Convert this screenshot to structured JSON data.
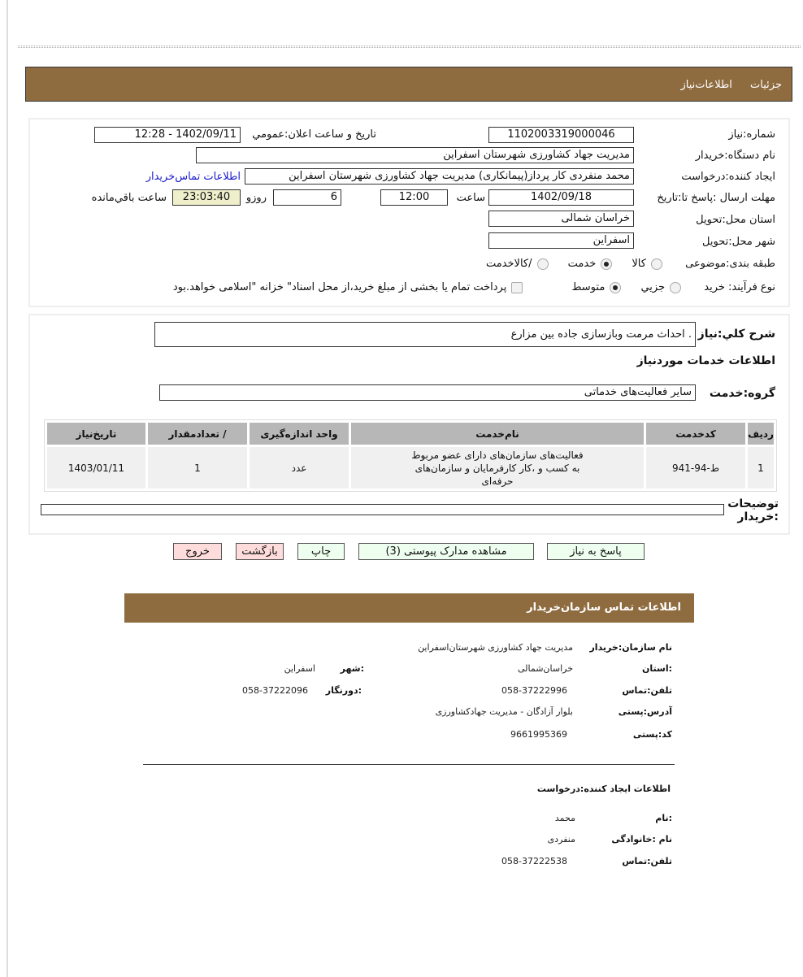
{
  "header": {
    "tabs": [
      "جزئیات",
      "اطلاعات‌نیاز"
    ],
    "color": "#8f6c40"
  },
  "form": {
    "need_number_label": "شماره:نیاز",
    "need_number": "1102003319000046",
    "announce_label": "تاریخ و ساعت اعلان:عمومي",
    "announce_value": "1402/09/11 - 12:28",
    "buyer_org_label": "نام دستگاه:خریدار",
    "buyer_org": "مدیریت جهاد کشاورزی شهرستان اسفراین",
    "creator_label": "ایجاد کنندە:درخواست",
    "creator": "محمد  منفردی کار پرداز(پیمانکاری) مدیریت جهاد کشاورزی شهرستان اسفراین",
    "contact_link": "اطلاعات تماس‌خریدار",
    "deadline_label": "مهلت ارسال :پاسخ تا:تاریخ",
    "deadline_date": "1402/09/18",
    "time_label": "ساعت",
    "deadline_time": "12:00",
    "days": "6",
    "days_label": "روزو",
    "remaining": "23:03:40",
    "remaining_label": "ساعت باقي‌مانده",
    "province_label": "استان محل:تحویل",
    "province": "خراسان شمالی",
    "city_label": "شهر محل:تحویل",
    "city": "اسفراین",
    "category_label": "طبقه بندی:موضوعی",
    "category_options": [
      "کالا",
      "خدمت",
      "/کالاخدمت"
    ],
    "category_selected": "خدمت",
    "process_label": "نوع فرآیند: خرید",
    "process_options": [
      "جزیي",
      "متوسط"
    ],
    "process_selected": "متوسط",
    "treasury_text": "پرداخت تمام یا بخشی از مبلغ خرید،از محل اسناد\" خزانه \"اسلامی خواهد.بود"
  },
  "details": {
    "desc_label": "شرح کلي:نیاز",
    "desc": ". احداث مرمت وبازسازی جاده بین مزارع",
    "services_title": "اطلاعات خدمات موردنیاز",
    "group_label": "گروه:خدمت",
    "group": "سایر فعالیت‌های خدماتی",
    "table": {
      "headers": [
        "ردیف",
        "کدخدمت",
        "نام‌خدمت",
        "واحد  اندازه‌گیری",
        "/ تعدادمقدار",
        "تاریخ‌نیاز"
      ],
      "rows": [
        [
          "1",
          "ط-94-941",
          "فعالیت‌های سازمان‌های دارای عضو مربوط به کسب و ،کار کارفرمایان و سازمان‌های حرفه‌ای",
          "عدد",
          "1",
          "1403/01/11"
        ]
      ]
    },
    "buyer_notes_label": "توضیحات :خریدار",
    "buyer_notes": ""
  },
  "buttons": {
    "reply": "پاسخ به نیاز",
    "attachments": "مشاهده مدارک پیوستی (3)",
    "print": "چاپ",
    "back": "بازگشت",
    "exit": "خروج"
  },
  "contact": {
    "title": "اطلاعات  تماس سازمان‌خریدار",
    "org_label": "نام سازمان:خریدار",
    "org": "مدیریت جهاد کشاورزی شهرستان‌اسفراین",
    "province_label": ":استان",
    "province": "خراسان‌شمالی",
    "city_label": ":شهر",
    "city": "اسفراین",
    "phone_label": "تلفن:تماس",
    "phone": "058-37222996",
    "fax_label": ":دورنگار",
    "fax": "058-37222096",
    "address_label": "آدرس:پستی",
    "address": "بلوار آزادگان - مدیریت جهادکشاورزی",
    "postal_label": "کد:پستی",
    "postal": "9661995369",
    "creator_title": "اطلاعات  ایجاد کننده:درخواست",
    "name_label": ":نام",
    "name": "محمد",
    "family_label": "نام :خانوادگی",
    "family": "منفردی",
    "creator_phone_label": "تلفن:تماس",
    "creator_phone": "058-37222538"
  }
}
